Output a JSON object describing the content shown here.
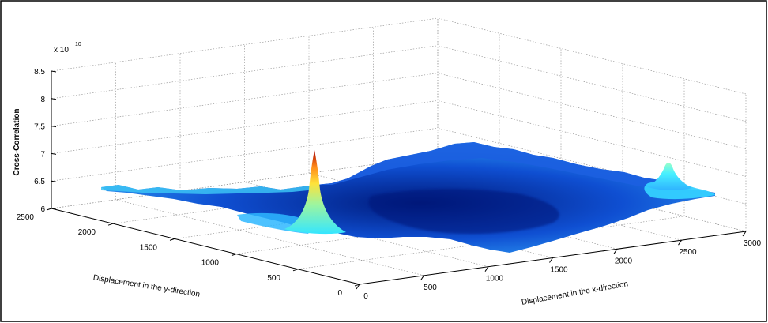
{
  "chart_data": {
    "type": "surface",
    "title": "",
    "zlabel": "Cross-Correlation",
    "xlabel": "Displacement in the x-direction",
    "ylabel": "Displacement in the y-direction",
    "z_multiplier": "x 10",
    "z_multiplier_exp": "10",
    "xlim": [
      0,
      3000
    ],
    "ylim": [
      0,
      2500
    ],
    "zlim": [
      6,
      8.5
    ],
    "x_ticks": [
      "0",
      "500",
      "1000",
      "1500",
      "2000",
      "2500",
      "3000"
    ],
    "y_ticks": [
      "0",
      "500",
      "1000",
      "1500",
      "2000",
      "2500"
    ],
    "z_ticks": [
      "6",
      "6.5",
      "7",
      "7.5",
      "8",
      "8.5"
    ],
    "grid": true,
    "colormap": "jet",
    "surface_baseline_approx": 6.35,
    "peaks": [
      {
        "x": 0,
        "y": 1500,
        "z": 7.0
      },
      {
        "x": 2750,
        "y": 0,
        "z": 6.8
      }
    ]
  },
  "colors": {
    "surface_low": "#00008f",
    "surface_mid": "#1f74ee",
    "surface_high": "#40f0ff",
    "peak_top": "#b00000",
    "grid": "#9a9a9a",
    "frame": "#000000"
  }
}
